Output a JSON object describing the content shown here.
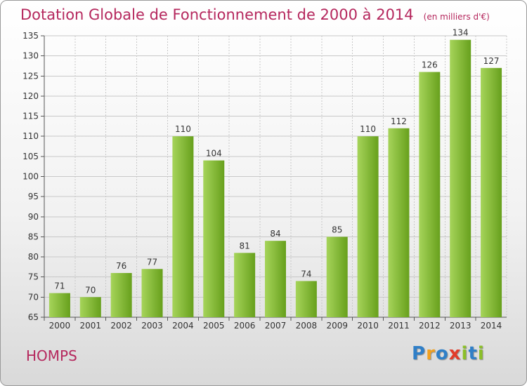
{
  "header": {
    "title": "Dotation Globale de Fonctionnement de 2000 à 2014",
    "subtitle": "(en milliers d'€)"
  },
  "commune": "HOMPS",
  "logo": {
    "text": "Proxiti",
    "letters": [
      {
        "ch": "P",
        "color": "#2f7fc8"
      },
      {
        "ch": "r",
        "color": "#f0a020"
      },
      {
        "ch": "o",
        "color": "#2f7fc8"
      },
      {
        "ch": "x",
        "color": "#e23c2a"
      },
      {
        "ch": "i",
        "color": "#8bbf28"
      },
      {
        "ch": "t",
        "color": "#2f7fc8"
      },
      {
        "ch": "i",
        "color": "#8bbf28"
      }
    ]
  },
  "colors": {
    "accent": "#b5275d",
    "bar_light": "#a6d45a",
    "bar_dark": "#67a01c",
    "grid": "#c8c8c8"
  },
  "chart_data": {
    "type": "bar",
    "title": "Dotation Globale de Fonctionnement de 2000 à 2014",
    "subtitle": "(en milliers d'€)",
    "xlabel": "",
    "ylabel": "",
    "categories": [
      "2000",
      "2001",
      "2002",
      "2003",
      "2004",
      "2005",
      "2006",
      "2007",
      "2008",
      "2009",
      "2010",
      "2011",
      "2012",
      "2013",
      "2014"
    ],
    "values": [
      71,
      70,
      76,
      77,
      110,
      104,
      81,
      84,
      74,
      85,
      110,
      112,
      126,
      134,
      127
    ],
    "ylim": [
      65,
      135
    ],
    "yticks": [
      65,
      70,
      75,
      80,
      85,
      90,
      95,
      100,
      105,
      110,
      115,
      120,
      125,
      130,
      135
    ],
    "grid": true,
    "data_labels": true
  }
}
